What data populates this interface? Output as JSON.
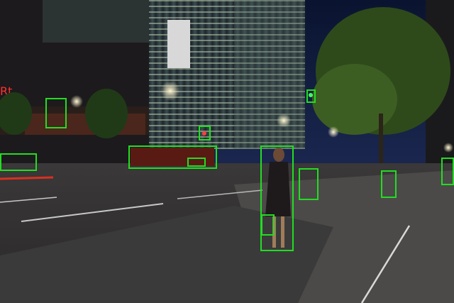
{
  "scene": {
    "box_color": "#22dd22",
    "sign_text": "Rt",
    "objects": [
      {
        "label": "traffic-light"
      },
      {
        "label": "traffic-light"
      },
      {
        "label": "traffic-light"
      },
      {
        "label": "car"
      },
      {
        "label": "bus"
      },
      {
        "label": "car"
      },
      {
        "label": "person"
      },
      {
        "label": "handbag"
      },
      {
        "label": "bicycle"
      },
      {
        "label": "bicycle"
      },
      {
        "label": "person"
      }
    ]
  }
}
